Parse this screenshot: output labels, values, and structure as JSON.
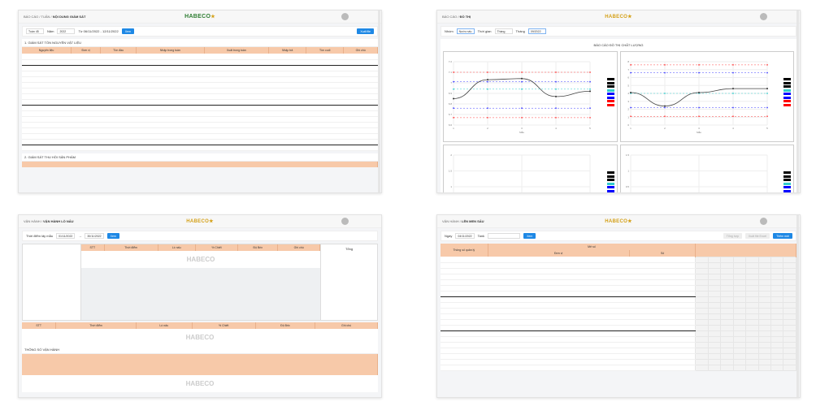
{
  "brand": {
    "logo": "HABECO",
    "accent": "#1e88e5",
    "header_color": "#f7c9a9"
  },
  "p1": {
    "crumbs": [
      "BÁO CÁO",
      "TUẦN",
      "NỘI DUNG GIÁM SÁT"
    ],
    "filters": {
      "type": "Tuần 45",
      "year_label": "Năm",
      "year": "2022",
      "range": "Từ 06/11/2022 - 12/11/2022"
    },
    "view_btn": "Xem",
    "export_btn": "Xuất file",
    "section1": "1. GIÁM SÁT TỒN NGUYÊN VẬT LIỆU",
    "section2": "2. GIÁM SÁT THU HỒI SẢN PHẨM",
    "columns": [
      "Nguyên liệu",
      "Đơn vị",
      "Tồn đầu",
      "Nhập trong tuần",
      "Xuất trong tuần",
      "Nhập trả",
      "Tồn cuối",
      "Ghi chú"
    ]
  },
  "p2": {
    "crumbs": [
      "BÁO CÁO",
      "ĐỒ THỊ"
    ],
    "filters": {
      "line_label": "Nhóm",
      "line": "Nước nấu",
      "period_label": "Thời gian",
      "period": "Tháng",
      "month_label": "Tháng",
      "month": "09/2022"
    },
    "report_title": "BÁO CÁO ĐỒ THỊ CHẤT LƯỢNG",
    "charts": [
      {
        "x": [
          1,
          2,
          3,
          4,
          5
        ],
        "ylim": [
          6.6,
          7.2
        ],
        "ticks": [
          6.6,
          6.7,
          6.8,
          6.9,
          7.0,
          7.1,
          7.2
        ],
        "xlabel": "Mẫu",
        "actual": [
          6.85,
          7.03,
          7.04,
          6.87,
          6.92
        ],
        "limits": [
          {
            "color": "#ff4444",
            "v": 7.1
          },
          {
            "color": "#4444ff",
            "v": 7.01
          },
          {
            "color": "#33cccc",
            "v": 6.94
          },
          {
            "color": "#4444ff",
            "v": 6.76
          },
          {
            "color": "#ff4444",
            "v": 6.67
          }
        ]
      },
      {
        "x": [
          1,
          2,
          3,
          4,
          5
        ],
        "ylim": [
          0,
          8
        ],
        "ticks": [
          0,
          1,
          2,
          3,
          4,
          5,
          6,
          7,
          8
        ],
        "xlabel": "Mẫu",
        "actual": [
          4.1,
          2.4,
          4.1,
          4.6,
          4.6
        ],
        "limits": [
          {
            "color": "#ff4444",
            "v": 7.6
          },
          {
            "color": "#4444ff",
            "v": 6.6
          },
          {
            "color": "#33cccc",
            "v": 4.0
          },
          {
            "color": "#4444ff",
            "v": 2.2
          },
          {
            "color": "#ff4444",
            "v": 1.1
          }
        ]
      },
      {
        "x": [
          1,
          3,
          5
        ],
        "ylim": [
          0,
          2
        ],
        "ticks": [
          0,
          0.5,
          1,
          1.5,
          2
        ],
        "xlabel": "",
        "actual": [
          0,
          0,
          0
        ],
        "limits": []
      },
      {
        "x": [
          1,
          3,
          5
        ],
        "ylim": [
          -0.5,
          1.5
        ],
        "ticks": [
          -0.5,
          0,
          0.5,
          1,
          1.5
        ],
        "xlabel": "",
        "actual": [
          0,
          0,
          0
        ],
        "limits": []
      }
    ],
    "legend_colors": [
      "#000000",
      "#000000",
      "#000000",
      "#33cccc",
      "#0000ff",
      "#0000ff",
      "#ff0000",
      "#ff0000"
    ]
  },
  "p3": {
    "crumbs": [
      "VẬN HÀNH",
      "VẬN HÀNH LÒ NẤU"
    ],
    "filters": {
      "label": "Thời điểm lấy mẫu",
      "from": "01/11/2022",
      "to": "30/11/2022"
    },
    "view_btn": "Xem",
    "columns": [
      "STT",
      "Thời điểm",
      "Lò nấu",
      "% Chiết",
      "Độ Brix",
      "Ghi chú"
    ],
    "side_title": "Tổng",
    "subtitle": "THÔNG SỐ VẬN HÀNH"
  },
  "p4": {
    "crumbs": [
      "VẬN HÀNH",
      "LÊN MEN SẤU"
    ],
    "filters": {
      "date_label": "Ngày",
      "date": "04/11/2022",
      "tank_label": "Tank"
    },
    "view_btn": "Xem",
    "btn2": "Tổng hợp",
    "btn3": "Xuất file Excel",
    "btn4": "Thêm mới",
    "col1": "Thông số quản lý",
    "group": "Mẻ số",
    "sub": [
      "Đơn vị",
      "Số"
    ]
  }
}
